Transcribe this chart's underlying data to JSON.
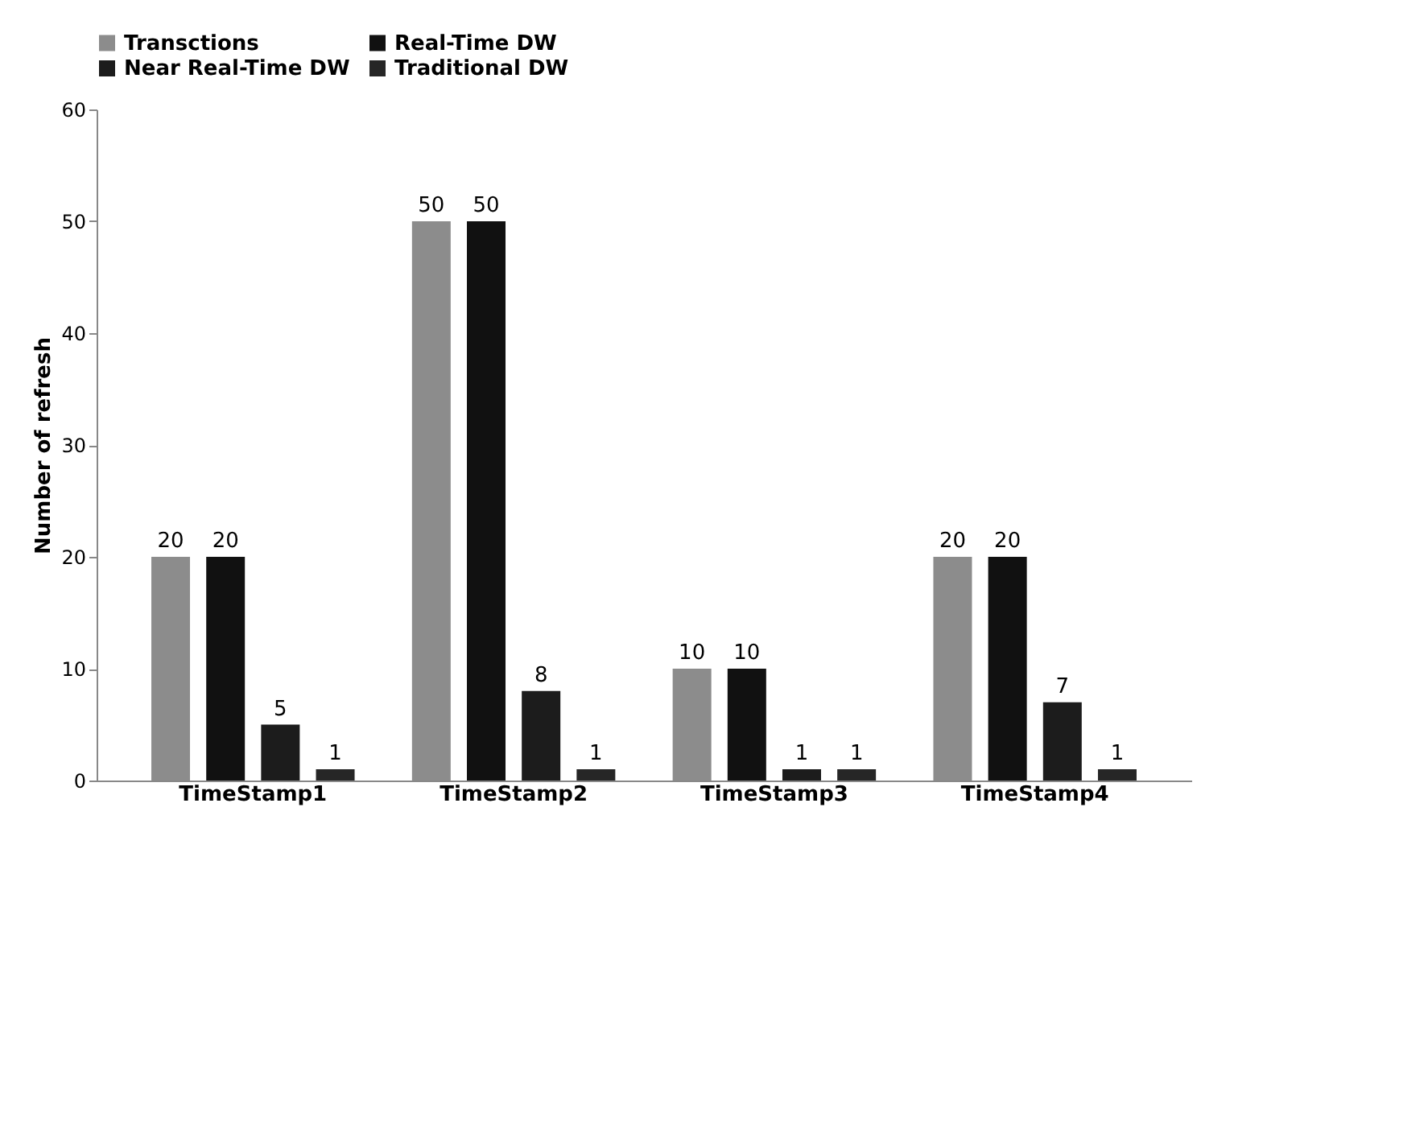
{
  "chart_data": {
    "type": "bar",
    "ylabel": "Number of refresh",
    "categories": [
      "TimeStamp1",
      "TimeStamp2",
      "TimeStamp3",
      "TimeStamp4"
    ],
    "series": [
      {
        "name": "Transctions",
        "color": "#8c8c8c",
        "values": [
          20,
          50,
          10,
          20
        ]
      },
      {
        "name": "Real-Time DW",
        "color": "#111111",
        "values": [
          20,
          50,
          10,
          20
        ]
      },
      {
        "name": "Near Real-Time DW",
        "color": "#1c1c1c",
        "values": [
          5,
          8,
          1,
          7
        ]
      },
      {
        "name": "Traditional DW",
        "color": "#262626",
        "values": [
          1,
          1,
          1,
          1
        ]
      }
    ],
    "ylim": [
      0,
      60
    ],
    "yticks": [
      0,
      10,
      20,
      30,
      40,
      50,
      60
    ],
    "data_labels": true,
    "legend": "top",
    "grid": false
  }
}
